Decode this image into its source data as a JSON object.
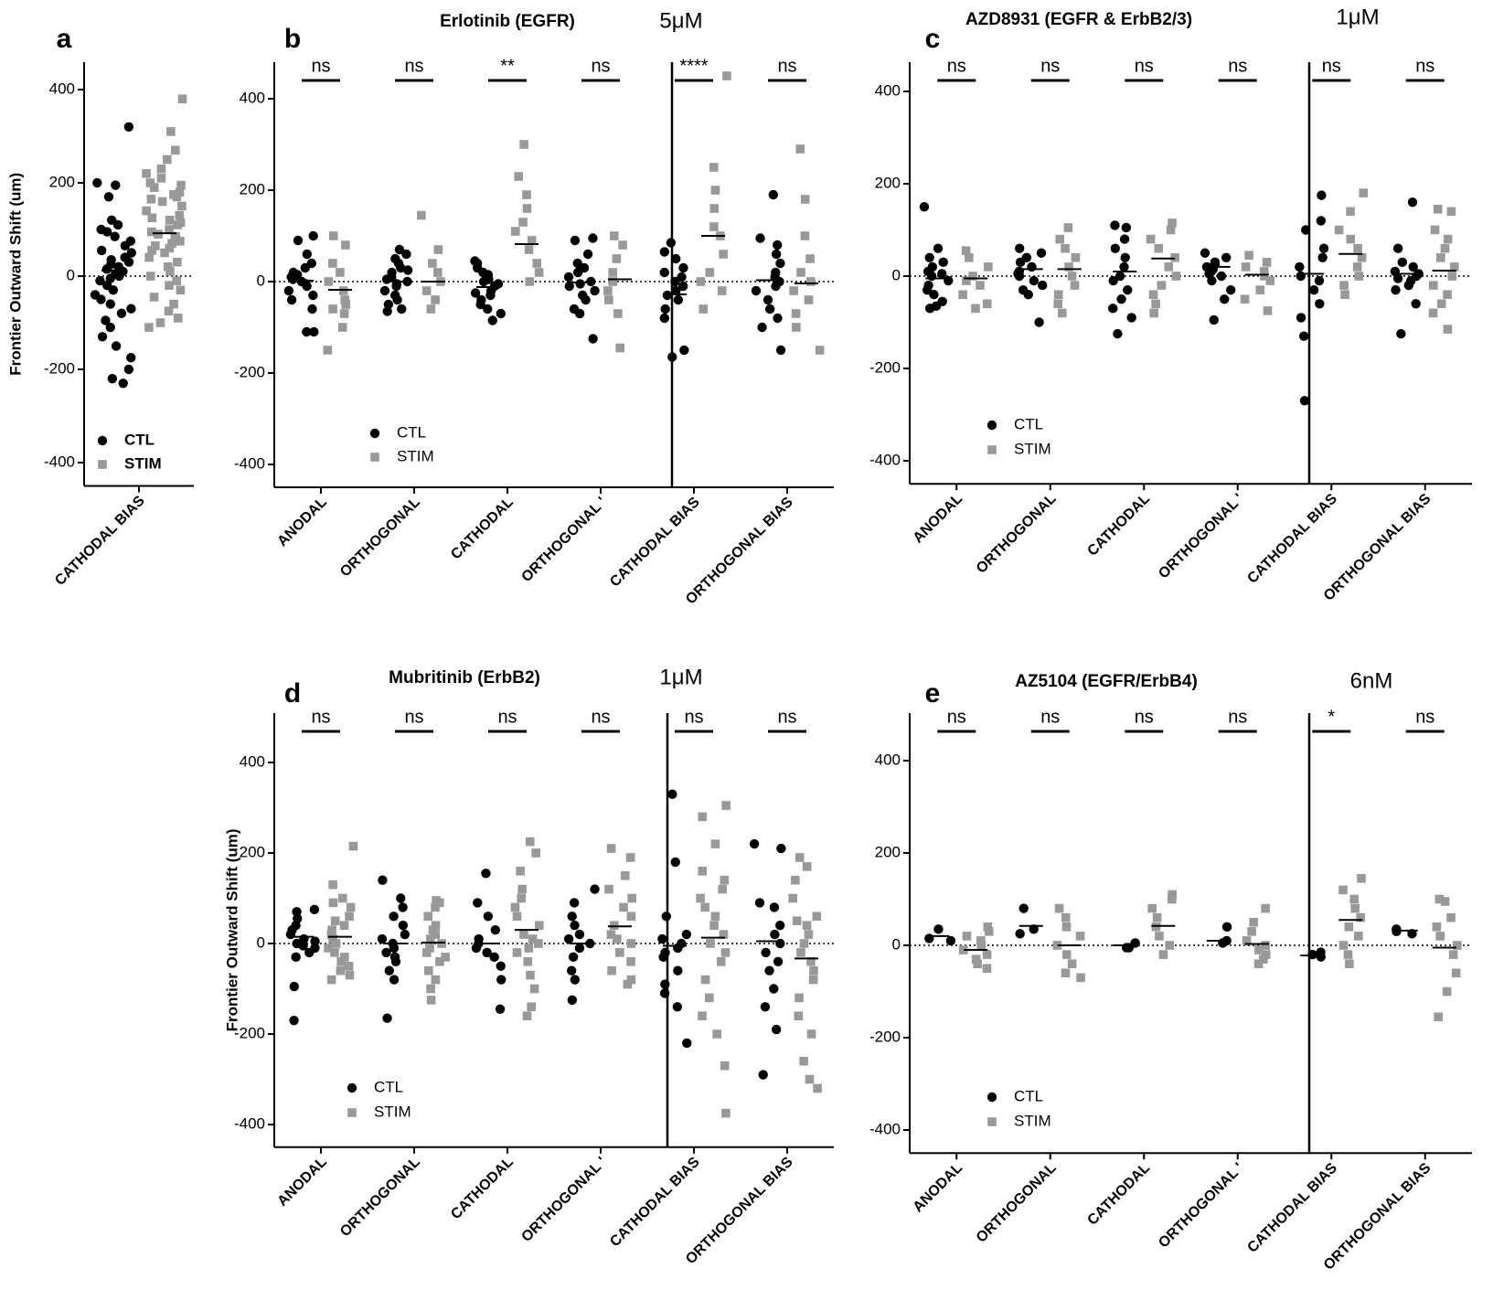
{
  "figure": {
    "colors": {
      "ctl": "#000000",
      "stim": "#999999",
      "axis": "#000000"
    },
    "legend": {
      "ctl": "CTL",
      "stim": "STIM"
    }
  },
  "chart_data": [
    {
      "id": "a",
      "type": "scatter",
      "letter": "a",
      "title": "",
      "concentration": "",
      "ylabel": "Frontier Outward Shift (um)",
      "ylim": [
        -450,
        460
      ],
      "yticks": [
        400,
        200,
        0,
        -200,
        -400
      ],
      "yticklabels": [
        "400",
        "200",
        "0",
        "-200",
        "-400"
      ],
      "categories": [
        "CATHODAL BIAS"
      ],
      "significance": [
        null
      ],
      "legend_bold": true,
      "series": [
        {
          "name": "CTL",
          "groups": [
            [
              320,
              200,
              195,
              170,
              120,
              110,
              100,
              95,
              85,
              75,
              65,
              55,
              50,
              40,
              35,
              30,
              25,
              20,
              15,
              10,
              5,
              0,
              -5,
              -10,
              -20,
              -30,
              -40,
              -50,
              -60,
              -70,
              -80,
              -95,
              -110,
              -130,
              -150,
              -175,
              -200,
              -220,
              -230
            ]
          ],
          "means": [
            12
          ]
        },
        {
          "name": "STIM",
          "groups": [
            [
              380,
              310,
              270,
              250,
              230,
              220,
              210,
              200,
              195,
              190,
              180,
              175,
              170,
              165,
              160,
              150,
              140,
              130,
              125,
              120,
              115,
              110,
              100,
              95,
              90,
              85,
              80,
              75,
              70,
              65,
              60,
              55,
              50,
              40,
              30,
              20,
              10,
              0,
              -10,
              -20,
              -30,
              -45,
              -60,
              -75,
              -90,
              -100,
              -110
            ]
          ],
          "means": [
            92
          ]
        }
      ]
    },
    {
      "id": "b",
      "type": "scatter",
      "letter": "b",
      "title": "Erlotinib (EGFR)",
      "concentration": "5μM",
      "ylabel": "",
      "ylim": [
        -450,
        460
      ],
      "yticks": [
        400,
        200,
        0,
        -200,
        -400
      ],
      "yticklabels": [
        "400",
        "200",
        "0",
        "-200",
        "-400"
      ],
      "categories": [
        "ANODAL",
        "ORTHOGONAL",
        "CATHODAL",
        "ORTHOGONAL '",
        "CATHODAL BIAS",
        "ORTHOGONAL BIAS"
      ],
      "significance": [
        "ns",
        "ns",
        "**",
        "ns",
        "****",
        "ns"
      ],
      "divider_after": 3,
      "legend_bold": false,
      "series": [
        {
          "name": "CTL",
          "groups": [
            [
              100,
              90,
              60,
              40,
              30,
              20,
              15,
              10,
              5,
              0,
              -5,
              -10,
              -20,
              -30,
              -40,
              -60,
              -110,
              -110
            ],
            [
              70,
              60,
              50,
              40,
              30,
              25,
              20,
              10,
              5,
              0,
              -5,
              -10,
              -20,
              -30,
              -40,
              -50,
              -60,
              -65
            ],
            [
              45,
              40,
              30,
              20,
              15,
              5,
              0,
              -5,
              -10,
              -20,
              -25,
              -30,
              -40,
              -50,
              -60,
              -70,
              -85
            ],
            [
              95,
              90,
              60,
              40,
              30,
              20,
              10,
              0,
              -5,
              -10,
              -20,
              -30,
              -40,
              -60,
              -70,
              -125
            ],
            [
              85,
              65,
              50,
              30,
              20,
              10,
              0,
              -10,
              -20,
              -30,
              -40,
              -60,
              -80,
              -150,
              -165
            ],
            [
              190,
              95,
              80,
              60,
              40,
              20,
              10,
              0,
              -10,
              -20,
              -40,
              -60,
              -80,
              -100,
              -150
            ]
          ],
          "means": [
            2,
            0,
            -12,
            -2,
            -28,
            3
          ]
        },
        {
          "name": "STIM",
          "groups": [
            [
              100,
              80,
              40,
              20,
              0,
              -20,
              -40,
              -50,
              -60,
              -70,
              -100,
              -150
            ],
            [
              145,
              70,
              40,
              20,
              0,
              -20,
              -40,
              -60
            ],
            [
              300,
              230,
              190,
              160,
              130,
              110,
              90,
              70,
              40,
              20,
              0
            ],
            [
              100,
              80,
              50,
              20,
              0,
              -20,
              -40,
              -70,
              -145
            ],
            [
              450,
              250,
              200,
              160,
              120,
              100,
              60,
              20,
              0,
              -20,
              -60
            ],
            [
              290,
              180,
              100,
              50,
              20,
              0,
              -20,
              -40,
              -70,
              -100,
              -150
            ]
          ],
          "means": [
            -18,
            0,
            82,
            5,
            100,
            -4
          ]
        }
      ]
    },
    {
      "id": "c",
      "type": "scatter",
      "letter": "c",
      "title": "AZD8931 (EGFR & ErbB2/3)",
      "concentration": "1μM",
      "ylabel": "",
      "ylim": [
        -450,
        460
      ],
      "yticks": [
        400,
        200,
        0,
        -200,
        -400
      ],
      "yticklabels": [
        "400",
        "200",
        "0",
        "-200",
        "-400"
      ],
      "categories": [
        "ANODAL",
        "ORTHOGONAL",
        "CATHODAL",
        "ORTHOGONAL '",
        "CATHODAL BIAS",
        "ORTHOGONAL BIAS"
      ],
      "significance": [
        "ns",
        "ns",
        "ns",
        "ns",
        "ns",
        "ns"
      ],
      "divider_after": 3,
      "legend_bold": false,
      "series": [
        {
          "name": "CTL",
          "groups": [
            [
              150,
              60,
              40,
              30,
              20,
              10,
              5,
              0,
              -10,
              -20,
              -30,
              -40,
              -55,
              -65,
              -70
            ],
            [
              60,
              50,
              40,
              30,
              20,
              10,
              5,
              0,
              -10,
              -20,
              -30,
              -40,
              -100
            ],
            [
              110,
              105,
              80,
              60,
              40,
              20,
              0,
              -10,
              -30,
              -50,
              -70,
              -90,
              -125
            ],
            [
              50,
              40,
              30,
              25,
              20,
              15,
              10,
              5,
              0,
              -10,
              -30,
              -50,
              -95
            ],
            [
              175,
              120,
              100,
              60,
              40,
              20,
              0,
              -10,
              -30,
              -60,
              -90,
              -130,
              -270
            ],
            [
              160,
              60,
              30,
              20,
              10,
              5,
              0,
              -5,
              -10,
              -20,
              -30,
              -60,
              -125
            ]
          ],
          "means": [
            -5,
            15,
            10,
            20,
            5,
            5
          ]
        },
        {
          "name": "STIM",
          "groups": [
            [
              55,
              40,
              20,
              0,
              -10,
              -20,
              -40,
              -60,
              -70
            ],
            [
              105,
              80,
              60,
              40,
              20,
              0,
              -20,
              -40,
              -60,
              -80
            ],
            [
              115,
              100,
              80,
              60,
              40,
              20,
              0,
              -20,
              -40,
              -60,
              -80
            ],
            [
              45,
              30,
              20,
              10,
              0,
              -10,
              -30,
              -50,
              -75
            ],
            [
              180,
              140,
              100,
              80,
              60,
              40,
              20,
              0,
              -20,
              -40
            ],
            [
              145,
              140,
              100,
              80,
              60,
              40,
              20,
              0,
              -20,
              -40,
              -60,
              -80,
              -115
            ]
          ],
          "means": [
            -5,
            15,
            38,
            3,
            48,
            12
          ]
        }
      ]
    },
    {
      "id": "d",
      "type": "scatter",
      "letter": "d",
      "title": "Mubritinib (ErbB2)",
      "concentration": "1μM",
      "ylabel": "Frontier Outward Shift (um)",
      "ylim": [
        -450,
        460
      ],
      "yticks": [
        400,
        200,
        0,
        -200,
        -400
      ],
      "yticklabels": [
        "400",
        "200",
        "0",
        "-200",
        "-400"
      ],
      "categories": [
        "ANODAL",
        "ORTHOGONAL",
        "CATHODAL",
        "ORTHOGONAL '",
        "CATHODAL BIAS",
        "ORTHOGONAL BIAS"
      ],
      "significance": [
        "ns",
        "ns",
        "ns",
        "ns",
        "ns",
        "ns"
      ],
      "divider_after": 3,
      "legend_bold": false,
      "series": [
        {
          "name": "CTL",
          "groups": [
            [
              75,
              70,
              55,
              40,
              30,
              20,
              10,
              5,
              0,
              -5,
              -10,
              -20,
              -30,
              -95,
              -170
            ],
            [
              140,
              100,
              80,
              60,
              40,
              20,
              10,
              0,
              -10,
              -20,
              -30,
              -40,
              -60,
              -80,
              -165
            ],
            [
              155,
              90,
              60,
              30,
              10,
              0,
              -10,
              -20,
              -30,
              -50,
              -80,
              -145
            ],
            [
              120,
              90,
              60,
              40,
              20,
              10,
              0,
              -10,
              -30,
              -60,
              -80,
              -125
            ],
            [
              330,
              180,
              60,
              20,
              10,
              0,
              -10,
              -20,
              -30,
              -60,
              -90,
              -110,
              -140,
              -220
            ],
            [
              220,
              210,
              90,
              80,
              40,
              20,
              0,
              -20,
              -40,
              -60,
              -100,
              -140,
              -190,
              -290
            ]
          ],
          "means": [
            15,
            0,
            0,
            0,
            -5,
            5
          ]
        },
        {
          "name": "STIM",
          "groups": [
            [
              215,
              130,
              100,
              90,
              80,
              60,
              50,
              40,
              30,
              20,
              10,
              0,
              -10,
              -20,
              -30,
              -40,
              -50,
              -60,
              -70,
              -80
            ],
            [
              95,
              90,
              80,
              60,
              40,
              30,
              20,
              10,
              0,
              -10,
              -20,
              -30,
              -40,
              -60,
              -80,
              -100,
              -125
            ],
            [
              225,
              200,
              160,
              120,
              100,
              80,
              60,
              40,
              20,
              10,
              0,
              -10,
              -20,
              -40,
              -70,
              -100,
              -140,
              -160
            ],
            [
              210,
              190,
              150,
              120,
              100,
              80,
              60,
              40,
              20,
              10,
              0,
              -20,
              -40,
              -60,
              -80,
              -90
            ],
            [
              305,
              280,
              220,
              160,
              140,
              120,
              100,
              80,
              60,
              40,
              20,
              0,
              -20,
              -40,
              -80,
              -120,
              -160,
              -200,
              -270,
              -375
            ],
            [
              190,
              170,
              140,
              100,
              60,
              50,
              40,
              20,
              0,
              -20,
              -40,
              -60,
              -80,
              -120,
              -160,
              -200,
              -260,
              -300,
              -320
            ]
          ],
          "means": [
            15,
            2,
            30,
            38,
            13,
            -33
          ]
        }
      ]
    },
    {
      "id": "e",
      "type": "scatter",
      "letter": "e",
      "title": "AZ5104 (EGFR/ErbB4)",
      "concentration": "6nM",
      "ylabel": "",
      "ylim": [
        -450,
        460
      ],
      "yticks": [
        400,
        200,
        0,
        -200,
        -400
      ],
      "yticklabels": [
        "400",
        "200",
        "0",
        "-200",
        "-400"
      ],
      "categories": [
        "ANODAL",
        "ORTHOGONAL",
        "CATHODAL",
        "ORTHOGONAL '",
        "CATHODAL BIAS",
        "ORTHOGONAL BIAS"
      ],
      "significance": [
        "ns",
        "ns",
        "ns",
        "ns",
        "*",
        "ns"
      ],
      "divider_after": 3,
      "legend_bold": false,
      "series": [
        {
          "name": "CTL",
          "groups": [
            [
              35,
              15,
              10
            ],
            [
              80,
              35,
              25
            ],
            [
              5,
              -5,
              -5
            ],
            [
              40,
              10,
              5
            ],
            [
              -15,
              -20,
              -25
            ],
            [
              35,
              30,
              25
            ]
          ],
          "means": [
            20,
            42,
            0,
            10,
            -22,
            32
          ]
        },
        {
          "name": "STIM",
          "groups": [
            [
              40,
              30,
              20,
              10,
              0,
              -10,
              -20,
              -30,
              -40,
              -50
            ],
            [
              80,
              60,
              40,
              20,
              0,
              -20,
              -40,
              -60,
              -70
            ],
            [
              110,
              100,
              80,
              60,
              40,
              20,
              0,
              -20
            ],
            [
              80,
              50,
              30,
              10,
              0,
              -10,
              -20,
              -30,
              -40
            ],
            [
              145,
              120,
              100,
              80,
              60,
              40,
              20,
              0,
              -20,
              -40
            ],
            [
              100,
              95,
              60,
              40,
              20,
              0,
              -20,
              -60,
              -100,
              -155
            ]
          ],
          "means": [
            -10,
            0,
            42,
            3,
            55,
            -5
          ]
        }
      ]
    }
  ]
}
